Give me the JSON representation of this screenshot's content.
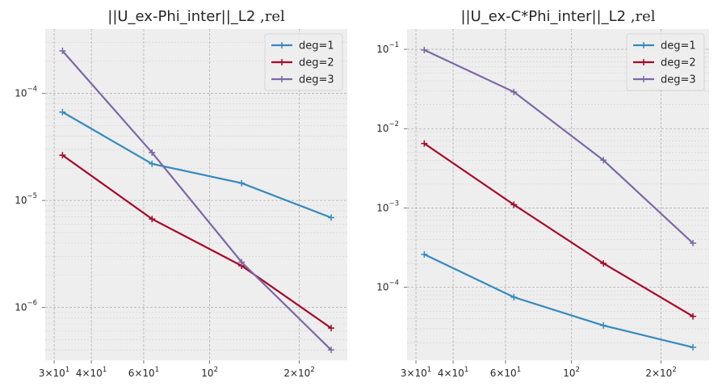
{
  "chart_data": [
    {
      "type": "line",
      "title_main": "||U_ex-Phi_inter||_L2",
      "title_suffix": " ,rel",
      "xscale": "log",
      "yscale": "log",
      "xlim": [
        28,
        290
      ],
      "ylim": [
        3.2e-07,
        0.0004
      ],
      "grid": true,
      "legend_position": "top-right",
      "x_ticks": [
        {
          "value": 30,
          "mant": "3",
          "base": "×10",
          "exp": "1"
        },
        {
          "value": 40,
          "mant": "4",
          "base": "×10",
          "exp": "1"
        },
        {
          "value": 60,
          "mant": "6",
          "base": "×10",
          "exp": "1"
        },
        {
          "value": 100,
          "mant": "",
          "base": "10",
          "exp": "2"
        },
        {
          "value": 200,
          "mant": "2",
          "base": "×10",
          "exp": "2"
        }
      ],
      "y_ticks": [
        {
          "value": 1e-06,
          "base": "10",
          "exp": "−6"
        },
        {
          "value": 1e-05,
          "base": "10",
          "exp": "−5"
        },
        {
          "value": 0.0001,
          "base": "10",
          "exp": "−4"
        }
      ],
      "x": [
        32,
        64,
        128,
        256
      ],
      "series": [
        {
          "name": "deg=1",
          "color": "#348ABD",
          "values": [
            6.7e-05,
            2.2e-05,
            1.45e-05,
            6.9e-06
          ]
        },
        {
          "name": "deg=2",
          "color": "#A60628",
          "values": [
            2.65e-05,
            6.7e-06,
            2.45e-06,
            6.4e-07
          ]
        },
        {
          "name": "deg=3",
          "color": "#7A68A6",
          "values": [
            0.00025,
            2.8e-05,
            2.65e-06,
            4e-07
          ]
        }
      ]
    },
    {
      "type": "line",
      "title_main": "||U_ex-C*Phi_inter||_L2",
      "title_suffix": " ,rel",
      "xscale": "log",
      "yscale": "log",
      "xlim": [
        28,
        290
      ],
      "ylim": [
        1.2e-05,
        0.18
      ],
      "grid": true,
      "legend_position": "top-right",
      "x_ticks": [
        {
          "value": 30,
          "mant": "3",
          "base": "×10",
          "exp": "1"
        },
        {
          "value": 40,
          "mant": "4",
          "base": "×10",
          "exp": "1"
        },
        {
          "value": 60,
          "mant": "6",
          "base": "×10",
          "exp": "1"
        },
        {
          "value": 100,
          "mant": "",
          "base": "10",
          "exp": "2"
        },
        {
          "value": 200,
          "mant": "2",
          "base": "×10",
          "exp": "2"
        }
      ],
      "y_ticks": [
        {
          "value": 0.0001,
          "base": "10",
          "exp": "−4"
        },
        {
          "value": 0.001,
          "base": "10",
          "exp": "−3"
        },
        {
          "value": 0.01,
          "base": "10",
          "exp": "−2"
        },
        {
          "value": 0.1,
          "base": "10",
          "exp": "−1"
        }
      ],
      "x": [
        32,
        64,
        128,
        256
      ],
      "series": [
        {
          "name": "deg=1",
          "color": "#348ABD",
          "values": [
            0.00026,
            7.5e-05,
            3.3e-05,
            1.75e-05
          ]
        },
        {
          "name": "deg=2",
          "color": "#A60628",
          "values": [
            0.0065,
            0.0011,
            0.0002,
            4.3e-05
          ]
        },
        {
          "name": "deg=3",
          "color": "#7A68A6",
          "values": [
            0.098,
            0.029,
            0.004,
            0.00036
          ]
        }
      ]
    }
  ]
}
